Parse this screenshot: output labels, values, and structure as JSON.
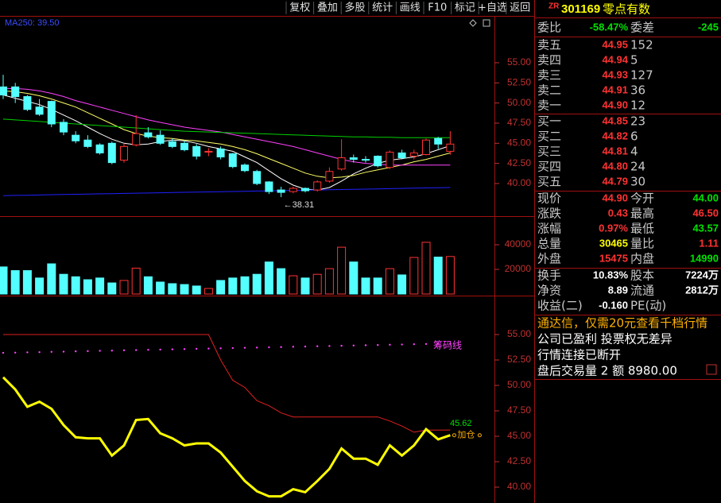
{
  "toolbar": [
    "复权",
    "叠加",
    "多股",
    "统计",
    "画线",
    "F10",
    "标记",
    "+自选",
    "返回"
  ],
  "quote": {
    "prefix": "ZR",
    "code": "301169",
    "name": "零点有数",
    "ratio_row": [
      "委比",
      "-58.47%",
      "委差",
      "-245"
    ],
    "asks": [
      [
        "卖五",
        "44.95",
        "152"
      ],
      [
        "卖四",
        "44.94",
        "5"
      ],
      [
        "卖三",
        "44.93",
        "127"
      ],
      [
        "卖二",
        "44.91",
        "36"
      ],
      [
        "卖一",
        "44.90",
        "12"
      ]
    ],
    "bids": [
      [
        "买一",
        "44.85",
        "23"
      ],
      [
        "买二",
        "44.82",
        "6"
      ],
      [
        "买三",
        "44.81",
        "4"
      ],
      [
        "买四",
        "44.80",
        "24"
      ],
      [
        "买五",
        "44.79",
        "30"
      ]
    ],
    "stats": [
      [
        "现价",
        "44.90",
        "今开",
        "44.00"
      ],
      [
        "涨跌",
        "0.43",
        "最高",
        "46.50"
      ],
      [
        "涨幅",
        "0.97%",
        "最低",
        "43.57"
      ],
      [
        "总量",
        "30465",
        "量比",
        "1.11"
      ],
      [
        "外盘",
        "15475",
        "内盘",
        "14990"
      ]
    ],
    "stats2": [
      [
        "换手",
        "10.83%",
        "股本",
        "7224万"
      ],
      [
        "净资",
        "8.89",
        "流通",
        "2812万"
      ],
      [
        "收益(二)",
        "-0.160",
        "PE(动)"
      ]
    ],
    "notices": [
      "通达信，仅需20元查看千档行情",
      "公司已盈利 投票权无差异",
      "行情连接已断开",
      "盘后交易量 2 额 8980.00"
    ]
  },
  "price_panel": {
    "legend": "MA250: 39.50",
    "ylim": [
      35.95,
      60.82
    ],
    "yticks": [
      {
        "value": 40,
        "label": "40.00"
      },
      {
        "value": 42.5,
        "label": "42.50"
      },
      {
        "value": 45,
        "label": "45.00"
      },
      {
        "value": 47.5,
        "label": "47.50"
      },
      {
        "value": 50,
        "label": "50.00"
      },
      {
        "value": 52.5,
        "label": "52.50"
      },
      {
        "value": 55,
        "label": "55.00"
      }
    ],
    "up_color": "#ff3232",
    "down_color": "#54ffff",
    "candles": [
      [
        52,
        53.5,
        50.5,
        51
      ],
      [
        52,
        52.5,
        50,
        50.8
      ],
      [
        50.8,
        51,
        49,
        49.2
      ],
      [
        49.5,
        50.5,
        48.4,
        48.6
      ],
      [
        50.2,
        50.3,
        47,
        47.4
      ],
      [
        47.6,
        48,
        46,
        46.4
      ],
      [
        46,
        46.5,
        45,
        45.3
      ],
      [
        45.4,
        46,
        44.4,
        44.6
      ],
      [
        44.8,
        45,
        43.6,
        43.8
      ],
      [
        45,
        45.2,
        42.4,
        42.6
      ],
      [
        42.9,
        45,
        42.6,
        44.6
      ],
      [
        44.8,
        48.5,
        44.6,
        46.2
      ],
      [
        46.3,
        47,
        45.6,
        45.8
      ],
      [
        46,
        46.6,
        44.8,
        45
      ],
      [
        45.2,
        45.6,
        44.4,
        44.6
      ],
      [
        45,
        45.3,
        44,
        44.2
      ],
      [
        44.6,
        44.9,
        43,
        43.4
      ],
      [
        43.9,
        44.4,
        43.4,
        44
      ],
      [
        44.3,
        44.6,
        43,
        43.3
      ],
      [
        43.7,
        43.8,
        41.9,
        42.1
      ],
      [
        42.3,
        42.5,
        41.4,
        41.6
      ],
      [
        41.5,
        41.7,
        39.8,
        40
      ],
      [
        40.2,
        40.3,
        38.7,
        39
      ],
      [
        39.2,
        39.6,
        38.31,
        38.9
      ],
      [
        39,
        39.6,
        38.8,
        39.4
      ],
      [
        39.4,
        39.5,
        38.9,
        39.1
      ],
      [
        39.2,
        40.4,
        39,
        40.2
      ],
      [
        40.3,
        42,
        40.1,
        41.5
      ],
      [
        41.8,
        45.5,
        41.6,
        43.2
      ],
      [
        43.2,
        43.6,
        42.6,
        43
      ],
      [
        43,
        43.4,
        42.6,
        42.9
      ],
      [
        43.4,
        43.5,
        42,
        42.2
      ],
      [
        42,
        44.1,
        41.8,
        43.9
      ],
      [
        43.8,
        44.2,
        43,
        43.2
      ],
      [
        43.4,
        44.2,
        43,
        43.8
      ],
      [
        43.6,
        45.6,
        43.5,
        45.4
      ],
      [
        45.6,
        45.8,
        44.3,
        44.9
      ],
      [
        44,
        46.5,
        43.57,
        44.9
      ]
    ],
    "ma_lines": [
      {
        "color": "#ffffff",
        "values": [
          51,
          50.6,
          50.2,
          49.8,
          49.2,
          48.5,
          47.8,
          47,
          46.2,
          45.5,
          45,
          44.8,
          44.9,
          45.2,
          45.4,
          45.3,
          45,
          44.6,
          44.3,
          44,
          43.3,
          42.6,
          41.6,
          40.6,
          39.8,
          39.3,
          39.2,
          39.5,
          40.3,
          41.2,
          41.9,
          42.5,
          42.9,
          43.1,
          43.3,
          43.7,
          44.2,
          44.7
        ]
      },
      {
        "color": "#ffff66",
        "values": [
          51.5,
          51.4,
          51.2,
          50.9,
          50.5,
          50,
          49.5,
          48.8,
          48.1,
          47.4,
          46.7,
          46.2,
          45.9,
          45.7,
          45.6,
          45.4,
          45.3,
          45.1,
          44.9,
          44.6,
          44.2,
          43.7,
          43.1,
          42.5,
          41.9,
          41.3,
          40.9,
          40.7,
          40.8,
          41,
          41.4,
          41.7,
          42,
          42.3,
          42.7,
          43,
          43.4,
          43.8
        ]
      },
      {
        "color": "#ff40ff",
        "values": [
          51.8,
          51.8,
          51.7,
          51.5,
          51.2,
          50.8,
          50.3,
          49.9,
          49.5,
          49.1,
          48.7,
          48.3,
          47.9,
          47.6,
          47.3,
          47,
          46.8,
          46.6,
          46.4,
          46.1,
          45.8,
          45.5,
          45.2,
          44.9,
          44.6,
          44.2,
          43.8,
          43.4,
          43,
          42.7,
          42.5,
          42.4,
          42.3,
          42.3,
          42.3,
          42.3,
          42.3,
          42.3
        ]
      },
      {
        "color": "#00d000",
        "values": [
          48,
          47.9,
          47.8,
          47.7,
          47.6,
          47.5,
          47.4,
          47.3,
          47.2,
          47.1,
          47,
          46.9,
          46.8,
          46.7,
          46.6,
          46.5,
          46.45,
          46.4,
          46.35,
          46.3,
          46.25,
          46.2,
          46.15,
          46.1,
          46.05,
          46,
          45.95,
          45.9,
          45.85,
          45.8,
          45.8,
          45.75,
          45.75,
          45.7,
          45.7,
          45.7,
          45.7,
          45.7
        ]
      },
      {
        "color": "#2020ff",
        "values": [
          38.5,
          38.53,
          38.55,
          38.58,
          38.61,
          38.64,
          38.66,
          38.69,
          38.72,
          38.74,
          38.77,
          38.8,
          38.82,
          38.85,
          38.88,
          38.91,
          38.93,
          38.96,
          38.99,
          39.01,
          39.04,
          39.07,
          39.09,
          39.12,
          39.15,
          39.18,
          39.2,
          39.23,
          39.26,
          39.28,
          39.31,
          39.34,
          39.36,
          39.39,
          39.42,
          39.45,
          39.47,
          39.5
        ]
      }
    ],
    "low_label": "←38.31"
  },
  "volume_panel": {
    "ylim": [
      0,
      61290
    ],
    "yticks": [
      20000,
      40000
    ],
    "values": [
      22000,
      19000,
      19000,
      13000,
      24500,
      16000,
      14000,
      11600,
      13000,
      9000,
      11000,
      21000,
      14000,
      9700,
      8400,
      7700,
      6500,
      4500,
      11000,
      13000,
      14000,
      16000,
      26000,
      20600,
      14800,
      13000,
      16000,
      20600,
      38000,
      26000,
      13000,
      13000,
      20600,
      15500,
      29700,
      42000,
      30000,
      30465
    ]
  },
  "chip_panel": {
    "ylim": [
      38.44,
      58.36
    ],
    "yticks": [
      {
        "value": 40,
        "label": "40.00"
      },
      {
        "value": 42.5,
        "label": "42.50"
      },
      {
        "value": 45,
        "label": "45.00"
      },
      {
        "value": 47.5,
        "label": "47.50"
      },
      {
        "value": 50,
        "label": "50.00"
      },
      {
        "value": 52.5,
        "label": "52.50"
      },
      {
        "value": 55,
        "label": "55.00"
      }
    ],
    "yellow_line": [
      50.8,
      49.6,
      47.9,
      48.4,
      47.7,
      46.1,
      44.9,
      44.8,
      44.8,
      43.1,
      44.1,
      46.6,
      46.7,
      45.3,
      44.8,
      44.1,
      44.3,
      44.3,
      43.4,
      42,
      40.6,
      39.6,
      39.1,
      39.1,
      39.8,
      39.5,
      40.6,
      41.8,
      43.8,
      42.8,
      42.8,
      42.2,
      44.1,
      43.1,
      44.1,
      45.7,
      44.7,
      45.1
    ],
    "red_line": [
      55,
      55,
      55,
      55,
      55,
      55,
      55,
      55,
      55,
      55,
      55,
      55,
      55,
      55,
      55,
      55,
      55,
      55,
      52.5,
      50.5,
      49.8,
      48.5,
      48,
      47.3,
      46.9,
      46.9,
      46.9,
      46.9,
      46.9,
      46.9,
      46.9,
      46.9,
      46.5,
      46,
      45.4,
      45.6,
      45.6,
      45.62
    ],
    "dotted_line": [
      53.2,
      53.22,
      53.25,
      53.27,
      53.3,
      53.32,
      53.35,
      53.37,
      53.4,
      53.42,
      53.45,
      53.47,
      53.5,
      53.52,
      53.55,
      53.57,
      53.6,
      53.62,
      53.65,
      53.67,
      53.7,
      53.72,
      53.75,
      53.77,
      53.8,
      53.82,
      53.85,
      53.87,
      53.9,
      53.92,
      53.95,
      53.97,
      54,
      54.02,
      54.05,
      54.07,
      54.1,
      54.12
    ],
    "dotted_label": "筹码线",
    "red_label": "45.62",
    "signal_label": "加仓"
  }
}
